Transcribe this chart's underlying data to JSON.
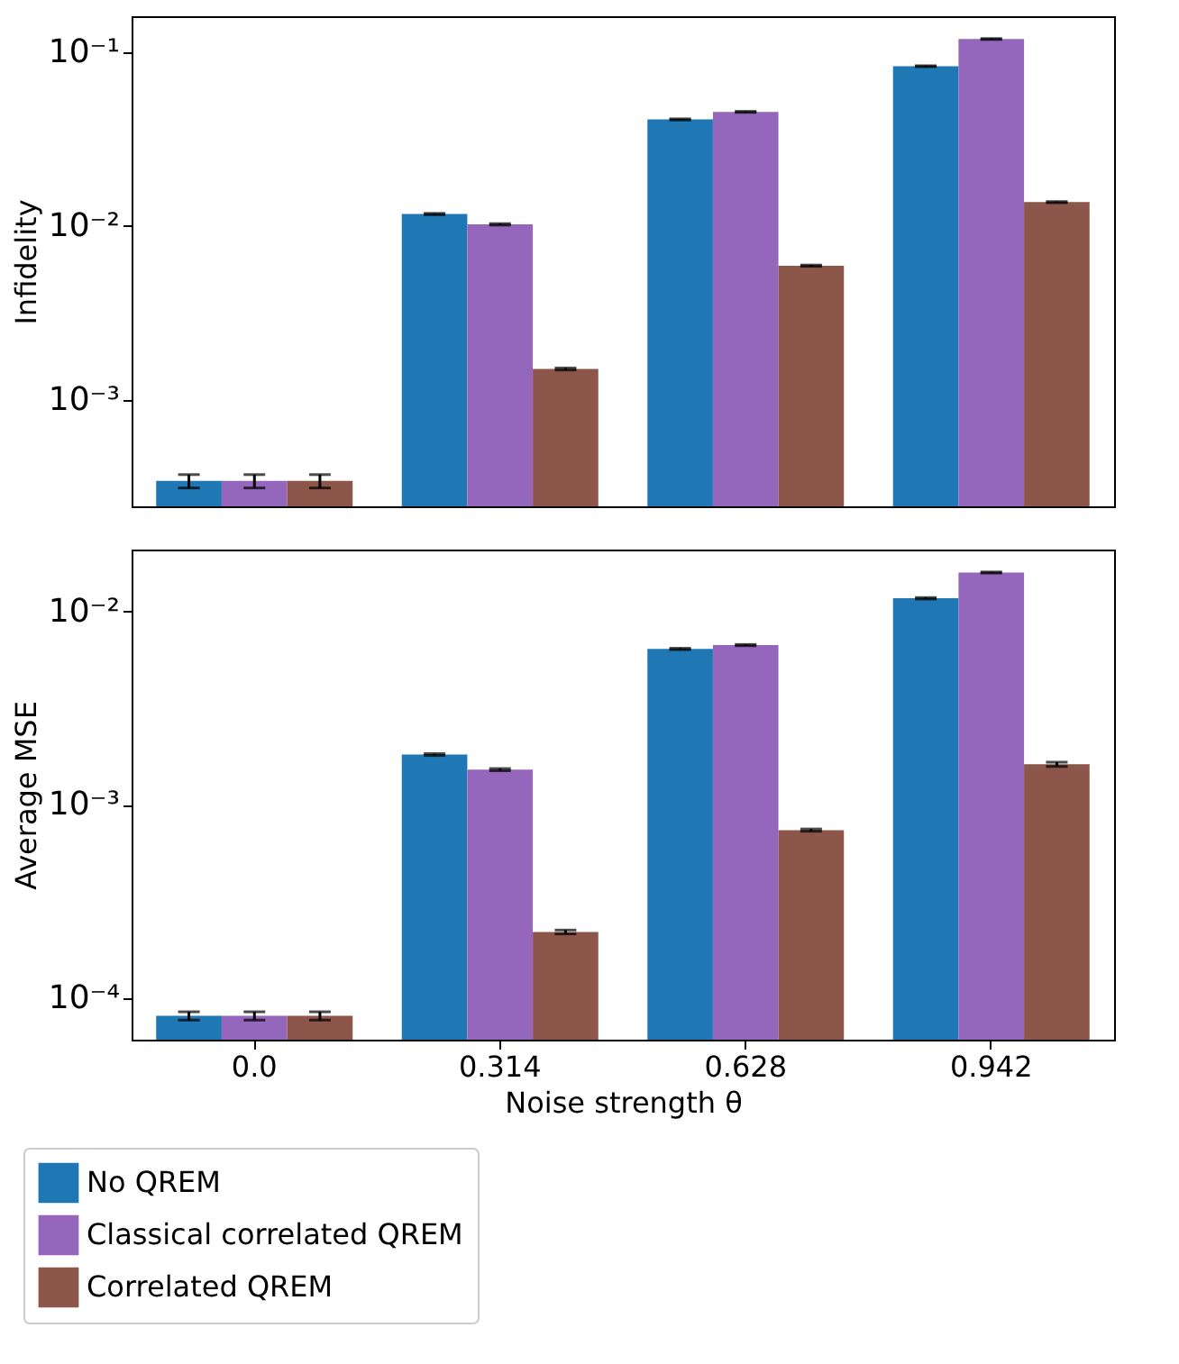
{
  "chart_data": [
    {
      "type": "bar",
      "ylabel": "Infidelity",
      "categories": [
        "0.0",
        "0.314",
        "0.628",
        "0.942"
      ],
      "log": "y",
      "ylim": [
        0.000243,
        0.161
      ],
      "yticks": [
        {
          "value": 0.001,
          "label": "10⁻³"
        },
        {
          "value": 0.01,
          "label": "10⁻²"
        },
        {
          "value": 0.1,
          "label": "10⁻¹"
        }
      ],
      "grid": false,
      "legend": "bottom left",
      "tick_labels": "y",
      "series": [
        {
          "name": "No QREM",
          "color": "#1f77b4",
          "values": [
            0.00034,
            0.0117,
            0.041,
            0.083
          ],
          "errors": [
            3e-05,
            0.0001,
            0.0003,
            0.0005
          ]
        },
        {
          "name": "Classical correlated QREM",
          "color": "#9467bd",
          "values": [
            0.00034,
            0.0102,
            0.0453,
            0.119
          ],
          "errors": [
            3e-05,
            0.0001,
            0.0003,
            0.0007
          ]
        },
        {
          "name": "Correlated QREM",
          "color": "#8c564b",
          "values": [
            0.00034,
            0.0015,
            0.0059,
            0.0137
          ],
          "errors": [
            3e-05,
            2e-05,
            5e-05,
            0.0001
          ]
        }
      ]
    },
    {
      "type": "bar",
      "ylabel": "Average MSE",
      "xlabel": "Noise strength θ",
      "categories": [
        "0.0",
        "0.314",
        "0.628",
        "0.942"
      ],
      "log": "y",
      "ylim": [
        6.1e-05,
        0.0209
      ],
      "yticks": [
        {
          "value": 0.0001,
          "label": "10⁻⁴"
        },
        {
          "value": 0.001,
          "label": "10⁻³"
        },
        {
          "value": 0.01,
          "label": "10⁻²"
        }
      ],
      "grid": false,
      "legend": "bottom left",
      "series": [
        {
          "name": "No QREM",
          "color": "#1f77b4",
          "values": [
            8.1e-05,
            0.00182,
            0.0064,
            0.0117
          ],
          "errors": [
            4e-06,
            2e-05,
            5e-05,
            0.0001
          ]
        },
        {
          "name": "Classical correlated QREM",
          "color": "#9467bd",
          "values": [
            8.1e-05,
            0.00152,
            0.0067,
            0.0159
          ],
          "errors": [
            4e-06,
            2e-05,
            5e-05,
            0.0001
          ]
        },
        {
          "name": "Correlated QREM",
          "color": "#8c564b",
          "values": [
            8.1e-05,
            0.00022,
            0.00074,
            0.00162
          ],
          "errors": [
            4e-06,
            5e-06,
            1e-05,
            4e-05
          ]
        }
      ]
    }
  ]
}
